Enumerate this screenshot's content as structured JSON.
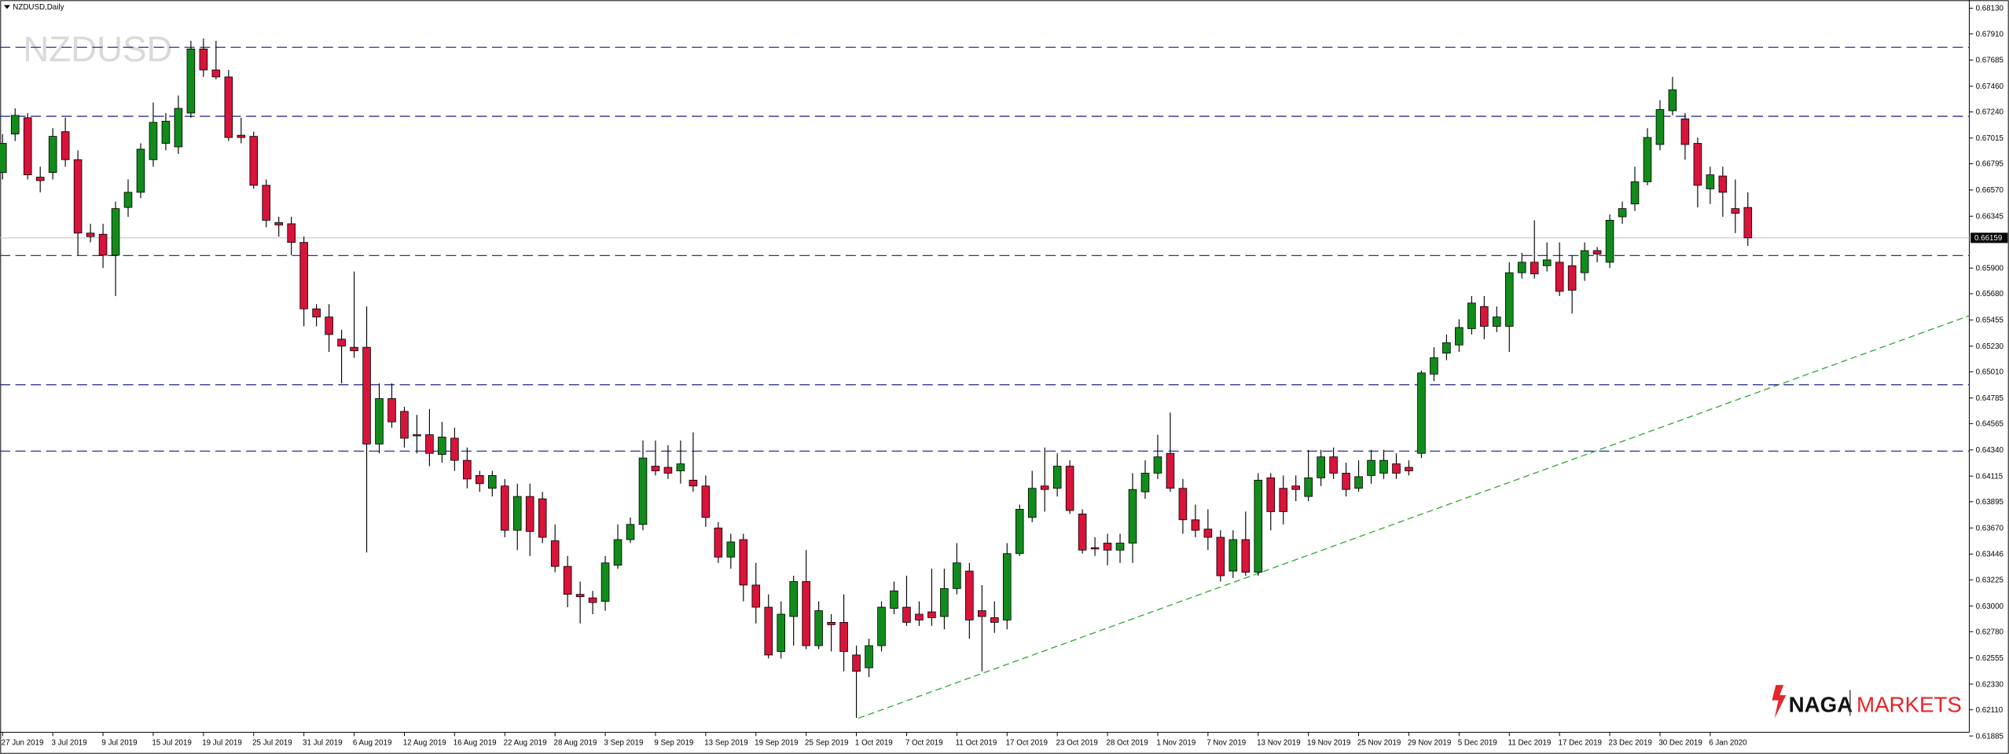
{
  "chart_data": {
    "type": "candlestick",
    "title": "NZDUSD,Daily",
    "watermark": "NZDUSD",
    "categories": [
      "27 Jun 2019",
      null,
      null,
      null,
      "3 Jul 2019",
      null,
      null,
      null,
      "9 Jul 2019",
      null,
      null,
      null,
      "15 Jul 2019",
      null,
      null,
      null,
      "19 Jul 2019",
      null,
      null,
      null,
      "25 Jul 2019",
      null,
      null,
      null,
      "31 Jul 2019",
      null,
      null,
      null,
      "6 Aug 2019",
      null,
      null,
      null,
      "12 Aug 2019",
      null,
      null,
      null,
      "16 Aug 2019",
      null,
      null,
      null,
      "22 Aug 2019",
      null,
      null,
      null,
      "28 Aug 2019",
      null,
      null,
      null,
      "3 Sep 2019",
      null,
      null,
      null,
      "9 Sep 2019",
      null,
      null,
      null,
      "13 Sep 2019",
      null,
      null,
      null,
      "19 Sep 2019",
      null,
      null,
      null,
      "25 Sep 2019",
      null,
      null,
      null,
      "1 Oct 2019",
      null,
      null,
      null,
      "7 Oct 2019",
      null,
      null,
      null,
      "11 Oct 2019",
      null,
      null,
      null,
      "17 Oct 2019",
      null,
      null,
      null,
      "23 Oct 2019",
      null,
      null,
      null,
      "28 Oct 2019",
      null,
      null,
      null,
      "1 Nov 2019",
      null,
      null,
      null,
      "7 Nov 2019",
      null,
      null,
      null,
      "13 Nov 2019",
      null,
      null,
      null,
      "19 Nov 2019",
      null,
      null,
      null,
      "25 Nov 2019",
      null,
      null,
      null,
      "29 Nov 2019",
      null,
      null,
      null,
      "5 Dec 2019",
      null,
      null,
      null,
      "11 Dec 2019",
      null,
      null,
      null,
      "17 Dec 2019",
      null,
      null,
      null,
      "23 Dec 2019",
      null,
      null,
      null,
      "30 Dec 2019",
      null,
      null,
      null,
      "6 Jan 2020",
      null,
      null,
      null
    ],
    "open": [
      0.6672,
      0.6705,
      0.6719,
      0.6668,
      0.6672,
      0.6707,
      0.6683,
      0.662,
      0.6619,
      0.6601,
      0.6642,
      0.6655,
      0.6683,
      0.6697,
      0.6694,
      0.6723,
      0.6778,
      0.676,
      0.6754,
      0.6704,
      0.6703,
      0.6661,
      0.6629,
      0.6628,
      0.6612,
      0.6555,
      0.6548,
      0.6529,
      0.6522,
      0.6522,
      0.6439,
      0.6478,
      0.6467,
      0.6447,
      0.6447,
      0.643,
      0.6444,
      0.6425,
      0.6412,
      0.6401,
      0.6403,
      0.6365,
      0.6394,
      0.6392,
      0.6356,
      0.6334,
      0.631,
      0.6307,
      0.6304,
      0.6335,
      0.6357,
      0.637,
      0.642,
      0.6419,
      0.6416,
      0.6408,
      0.6403,
      0.6367,
      0.6342,
      0.6357,
      0.6318,
      0.6299,
      0.6261,
      0.6291,
      0.6321,
      0.6266,
      0.6286,
      0.6286,
      0.6258,
      0.6247,
      0.6266,
      0.6298,
      0.6299,
      0.6293,
      0.6295,
      0.6291,
      0.6315,
      0.633,
      0.6296,
      0.629,
      0.6288,
      0.6345,
      0.6376,
      0.6403,
      0.6401,
      0.642,
      0.6379,
      0.635,
      0.6354,
      0.6348,
      0.6354,
      0.6398,
      0.6414,
      0.6431,
      0.6401,
      0.6374,
      0.6366,
      0.6359,
      0.633,
      0.6357,
      0.6329,
      0.641,
      0.6401,
      0.6403,
      0.6394,
      0.641,
      0.6428,
      0.6414,
      0.6401,
      0.6412,
      0.6414,
      0.6422,
      0.6419,
      0.6431,
      0.6499,
      0.6517,
      0.6524,
      0.6538,
      0.6557,
      0.654,
      0.654,
      0.6586,
      0.6595,
      0.6592,
      0.6595,
      0.6592,
      0.6586,
      0.6605,
      0.6595,
      0.6634,
      0.6645,
      0.6664,
      0.6696,
      0.6725,
      0.6718,
      0.6697,
      0.6658,
      0.6669,
      0.6641,
      0.6642
    ],
    "high": [
      0.6705,
      0.6727,
      0.6723,
      0.6677,
      0.671,
      0.6719,
      0.6691,
      0.6628,
      0.6628,
      0.6647,
      0.6666,
      0.6697,
      0.6732,
      0.6723,
      0.6738,
      0.6785,
      0.6787,
      0.6785,
      0.676,
      0.6719,
      0.6707,
      0.6666,
      0.6634,
      0.6634,
      0.6617,
      0.6559,
      0.6559,
      0.6537,
      0.6587,
      0.6557,
      0.6491,
      0.6491,
      0.6471,
      0.6464,
      0.6469,
      0.6458,
      0.6453,
      0.6436,
      0.6416,
      0.6416,
      0.6409,
      0.6405,
      0.6405,
      0.6398,
      0.637,
      0.6343,
      0.6321,
      0.6313,
      0.6343,
      0.637,
      0.6376,
      0.6442,
      0.6442,
      0.6438,
      0.6442,
      0.6449,
      0.6412,
      0.6372,
      0.6362,
      0.6362,
      0.6337,
      0.631,
      0.6304,
      0.6326,
      0.6348,
      0.6304,
      0.6293,
      0.631,
      0.6266,
      0.6272,
      0.6304,
      0.6321,
      0.6326,
      0.6304,
      0.6332,
      0.6332,
      0.6354,
      0.6337,
      0.6318,
      0.6304,
      0.6354,
      0.6387,
      0.6416,
      0.6436,
      0.6431,
      0.6425,
      0.6383,
      0.6359,
      0.6362,
      0.6362,
      0.6414,
      0.6425,
      0.6447,
      0.6466,
      0.6409,
      0.6387,
      0.6383,
      0.6365,
      0.6365,
      0.6381,
      0.6414,
      0.6414,
      0.6412,
      0.6412,
      0.6434,
      0.6434,
      0.6436,
      0.6423,
      0.6425,
      0.6434,
      0.6434,
      0.6431,
      0.6425,
      0.6502,
      0.6522,
      0.6533,
      0.6546,
      0.6566,
      0.6566,
      0.6557,
      0.6595,
      0.6603,
      0.6631,
      0.6612,
      0.6612,
      0.6601,
      0.6612,
      0.6608,
      0.6636,
      0.6647,
      0.6677,
      0.671,
      0.6734,
      0.6754,
      0.6723,
      0.6702,
      0.6677,
      0.6677,
      0.6666,
      0.6655
    ],
    "low": [
      0.6666,
      0.6699,
      0.6666,
      0.6655,
      0.6666,
      0.6677,
      0.6601,
      0.6612,
      0.659,
      0.6566,
      0.6634,
      0.665,
      0.6677,
      0.6691,
      0.6688,
      0.6719,
      0.6754,
      0.6752,
      0.6699,
      0.6697,
      0.6658,
      0.6625,
      0.6617,
      0.6601,
      0.654,
      0.654,
      0.6518,
      0.6491,
      0.6513,
      0.6346,
      0.6431,
      0.6453,
      0.6436,
      0.6431,
      0.642,
      0.6423,
      0.6416,
      0.6401,
      0.6398,
      0.6394,
      0.6359,
      0.6348,
      0.6343,
      0.6354,
      0.6329,
      0.6299,
      0.6285,
      0.6293,
      0.6296,
      0.6332,
      0.6354,
      0.6365,
      0.6412,
      0.6409,
      0.6405,
      0.6398,
      0.6368,
      0.6337,
      0.6332,
      0.6304,
      0.6285,
      0.6255,
      0.6255,
      0.6266,
      0.6263,
      0.6263,
      0.6261,
      0.6244,
      0.6204,
      0.6239,
      0.6261,
      0.6293,
      0.6283,
      0.6283,
      0.6283,
      0.628,
      0.631,
      0.6272,
      0.6244,
      0.6277,
      0.628,
      0.6343,
      0.6372,
      0.6381,
      0.6394,
      0.6379,
      0.6345,
      0.6343,
      0.6335,
      0.6337,
      0.6337,
      0.6392,
      0.6409,
      0.6398,
      0.6362,
      0.6359,
      0.6348,
      0.6321,
      0.6324,
      0.6326,
      0.6326,
      0.6365,
      0.637,
      0.639,
      0.639,
      0.6403,
      0.6409,
      0.6394,
      0.6398,
      0.6405,
      0.6409,
      0.6409,
      0.6412,
      0.6427,
      0.6493,
      0.6511,
      0.6518,
      0.6533,
      0.6529,
      0.6535,
      0.6518,
      0.6581,
      0.6581,
      0.6587,
      0.6566,
      0.6551,
      0.6579,
      0.6595,
      0.659,
      0.6628,
      0.6639,
      0.6661,
      0.6691,
      0.6721,
      0.6683,
      0.6642,
      0.6645,
      0.6634,
      0.662,
      0.6609
    ],
    "close": [
      0.6697,
      0.6721,
      0.667,
      0.6665,
      0.6703,
      0.6683,
      0.662,
      0.6617,
      0.6601,
      0.6641,
      0.6655,
      0.6692,
      0.6715,
      0.6716,
      0.6727,
      0.6778,
      0.676,
      0.6754,
      0.6702,
      0.6702,
      0.6661,
      0.6631,
      0.6627,
      0.6612,
      0.6555,
      0.6548,
      0.6533,
      0.6523,
      0.6519,
      0.6439,
      0.6478,
      0.6458,
      0.6444,
      0.6446,
      0.6431,
      0.6445,
      0.6425,
      0.6409,
      0.6405,
      0.6412,
      0.6365,
      0.6394,
      0.6364,
      0.6359,
      0.6334,
      0.631,
      0.6308,
      0.6303,
      0.6337,
      0.6357,
      0.637,
      0.6427,
      0.6416,
      0.6414,
      0.6422,
      0.6403,
      0.6376,
      0.6342,
      0.6355,
      0.6318,
      0.6299,
      0.6258,
      0.6293,
      0.6321,
      0.6266,
      0.6296,
      0.6284,
      0.6261,
      0.6244,
      0.6266,
      0.6299,
      0.6313,
      0.6286,
      0.6288,
      0.629,
      0.6315,
      0.6337,
      0.6288,
      0.6291,
      0.6286,
      0.6345,
      0.6383,
      0.6401,
      0.64,
      0.642,
      0.6382,
      0.6348,
      0.6349,
      0.6348,
      0.6354,
      0.64,
      0.6414,
      0.6428,
      0.6401,
      0.6374,
      0.6365,
      0.6359,
      0.6326,
      0.6357,
      0.6329,
      0.6408,
      0.6381,
      0.6381,
      0.64,
      0.641,
      0.6428,
      0.6414,
      0.64,
      0.6411,
      0.6425,
      0.6425,
      0.6414,
      0.6416,
      0.65,
      0.6513,
      0.6526,
      0.6539,
      0.656,
      0.654,
      0.6548,
      0.6586,
      0.6595,
      0.6585,
      0.6597,
      0.657,
      0.6571,
      0.6605,
      0.6602,
      0.6631,
      0.6641,
      0.6664,
      0.6702,
      0.6726,
      0.6743,
      0.6696,
      0.6661,
      0.667,
      0.6655,
      0.6637,
      0.66159
    ],
    "up_color": "#118c1b",
    "down_color": "#d8143a",
    "ylim": [
      0.6184,
      0.682
    ],
    "yticks": [
      {
        "value": 0.6813,
        "label": "0.68130"
      },
      {
        "value": 0.6791,
        "label": "0.67910"
      },
      0.67685,
      {
        "value": 0.6746,
        "label": "0.67460"
      },
      {
        "value": 0.6724,
        "label": "0.67240"
      },
      0.67015,
      0.66795,
      {
        "value": 0.6657,
        "label": "0.66570"
      },
      0.66345,
      {
        "value": 0.659,
        "label": "0.65900"
      },
      {
        "value": 0.6568,
        "label": "0.65680"
      },
      0.65455,
      {
        "value": 0.6523,
        "label": "0.65230"
      },
      {
        "value": 0.6501,
        "label": "0.65010"
      },
      0.64785,
      0.64565,
      {
        "value": 0.6434,
        "label": "0.64340"
      },
      0.64115,
      0.63895,
      {
        "value": 0.6367,
        "label": "0.63670"
      },
      0.63446,
      0.63225,
      {
        "value": 0.63,
        "label": "0.63000"
      },
      {
        "value": 0.6278,
        "label": "0.62780"
      },
      0.62555,
      {
        "value": 0.6233,
        "label": "0.62330"
      },
      {
        "value": 0.6211,
        "label": "0.62110"
      },
      0.61885
    ],
    "current_price": 0.66159,
    "levels": [
      0.67794,
      0.67202,
      0.66007,
      0.64899,
      0.64329
    ],
    "levels_color": "#2f2f9a"
  },
  "logo": {
    "brand": "NAGA",
    "product": "MARKETS"
  }
}
